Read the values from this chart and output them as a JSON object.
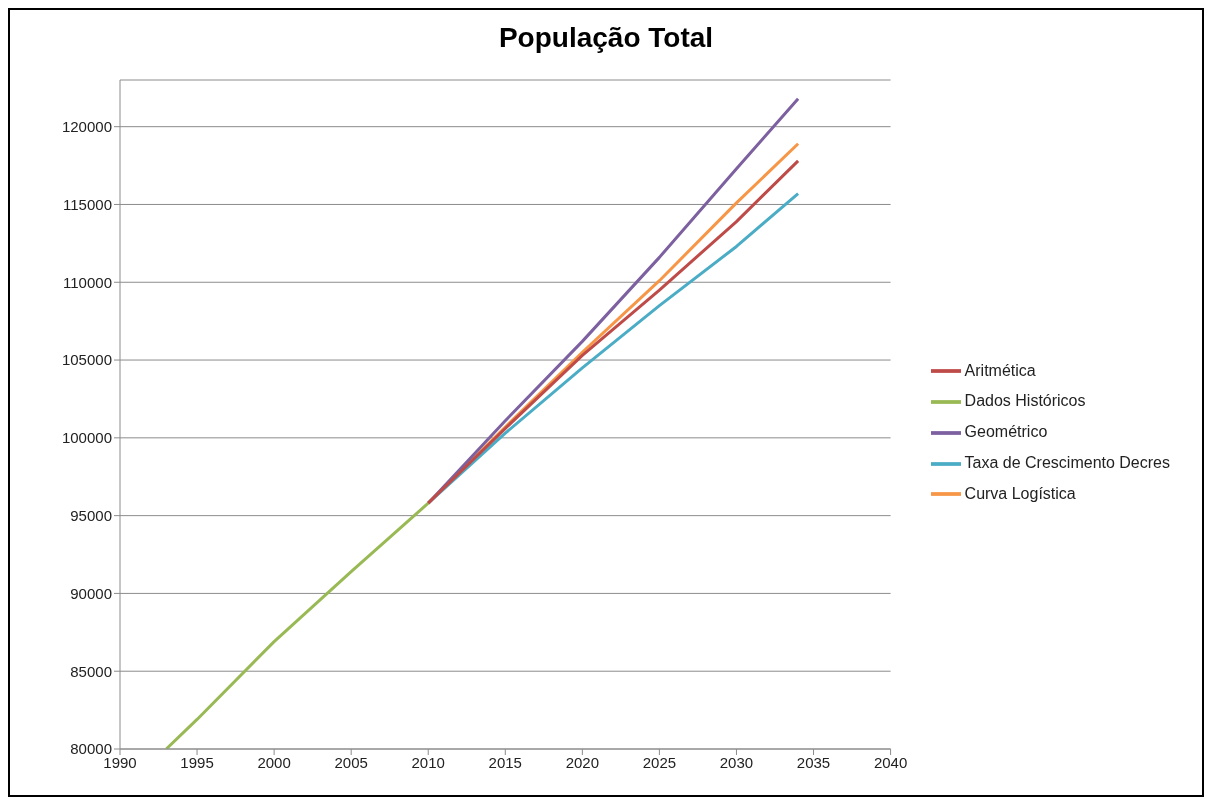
{
  "chart_data": {
    "type": "line",
    "title": "População Total",
    "xlim": [
      1990,
      2040
    ],
    "xticks": [
      1990,
      1995,
      2000,
      2005,
      2010,
      2015,
      2020,
      2025,
      2030,
      2035,
      2040
    ],
    "ylim": [
      80000,
      123000
    ],
    "yticks": [
      80000,
      85000,
      90000,
      95000,
      100000,
      105000,
      110000,
      115000,
      120000
    ],
    "grid": "y",
    "legend": "right",
    "marker": "none",
    "line_style": "solid",
    "series": [
      {
        "name": "Aritmética",
        "color": "#be4b48",
        "x": [
          2010,
          2015,
          2020,
          2025,
          2030,
          2034
        ],
        "values": [
          95800,
          100600,
          105300,
          109500,
          113900,
          117800
        ]
      },
      {
        "name": "Dados Históricos",
        "color": "#98b954",
        "x": [
          1993,
          1995,
          2000,
          2005,
          2010
        ],
        "values": [
          80000,
          81900,
          86900,
          91400,
          95800
        ]
      },
      {
        "name": "Geométrico",
        "color": "#7d60a0",
        "x": [
          2010,
          2015,
          2020,
          2025,
          2030,
          2034
        ],
        "values": [
          95800,
          101100,
          106200,
          111600,
          117300,
          121800
        ]
      },
      {
        "name": "Taxa de Crescimento  Decres",
        "color": "#4bacc6",
        "x": [
          2010,
          2015,
          2020,
          2025,
          2030,
          2034
        ],
        "values": [
          95800,
          100300,
          104500,
          108500,
          112300,
          115700
        ]
      },
      {
        "name": "Curva Logística",
        "color": "#f79646",
        "x": [
          2010,
          2015,
          2020,
          2025,
          2030,
          2034
        ],
        "values": [
          95800,
          100700,
          105500,
          110100,
          115100,
          118900
        ]
      }
    ]
  }
}
